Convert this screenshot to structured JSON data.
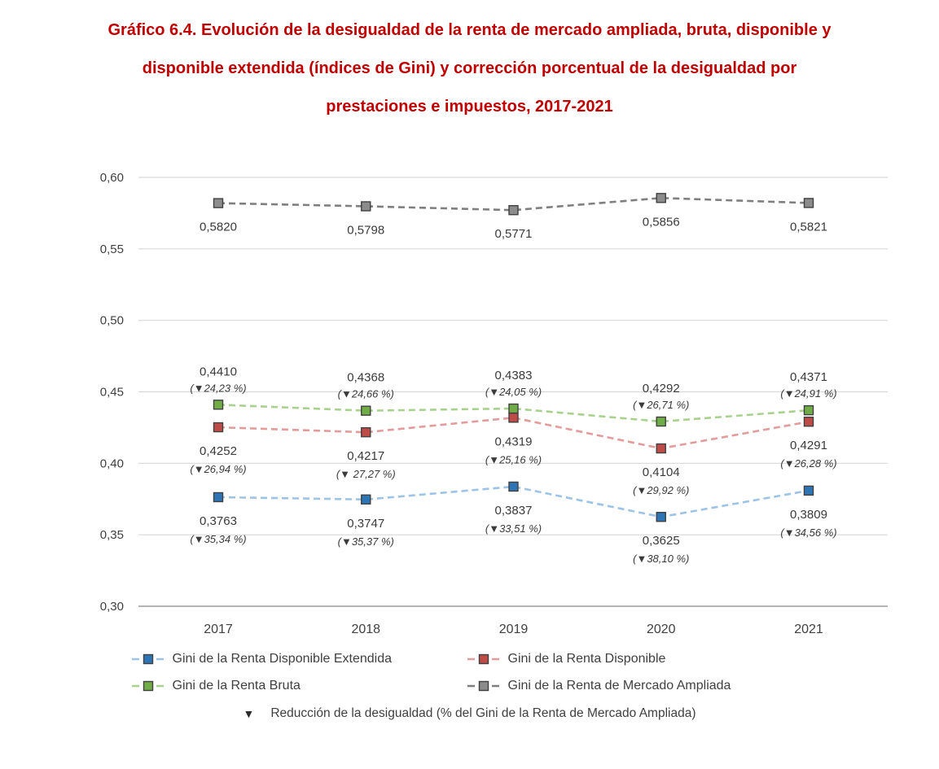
{
  "title": {
    "line1": "Gráfico 6.4. Evolución de la desigualdad de la renta de mercado ampliada, bruta, disponible y",
    "line2": "disponible extendida (índices de Gini) y corrección porcentual de la desigualdad por",
    "line3": "prestaciones e impuestos, 2017-2021",
    "color": "#C00000"
  },
  "chart_data": {
    "type": "line",
    "categories": [
      "2017",
      "2018",
      "2019",
      "2020",
      "2021"
    ],
    "ylim": [
      0.3,
      0.6
    ],
    "grid": true,
    "legend_position": "bottom",
    "yticks": [
      {
        "value": 0.3,
        "label": "0,30"
      },
      {
        "value": 0.35,
        "label": "0,35"
      },
      {
        "value": 0.4,
        "label": "0,40"
      },
      {
        "value": 0.45,
        "label": "0,45"
      },
      {
        "value": 0.5,
        "label": "0,50"
      },
      {
        "value": 0.55,
        "label": "0,55"
      },
      {
        "value": 0.6,
        "label": "0,60"
      }
    ],
    "series": [
      {
        "name": "Gini de la Renta de Mercado Ampliada",
        "values": [
          0.582,
          0.5798,
          0.5771,
          0.5856,
          0.5821
        ],
        "value_labels": [
          "0,5820",
          "0,5798",
          "0,5771",
          "0,5856",
          "0,5821"
        ],
        "reduction_labels": [
          null,
          null,
          null,
          null,
          null
        ],
        "line_color": "#7F7F7F",
        "marker_color": "#8C8C8C",
        "label_side": "below"
      },
      {
        "name": "Gini de la Renta Bruta",
        "values": [
          0.441,
          0.4368,
          0.4383,
          0.4292,
          0.4371
        ],
        "value_labels": [
          "0,4410",
          "0,4368",
          "0,4383",
          "0,4292",
          "0,4371"
        ],
        "reduction_labels": [
          "(▼24,23 %)",
          "(▼24,66 %)",
          "(▼24,05 %)",
          "(▼26,71 %)",
          "(▼24,91 %)"
        ],
        "line_color": "#A9D18E",
        "marker_color": "#70AD47",
        "label_side": "above"
      },
      {
        "name": "Gini de la Renta Disponible",
        "values": [
          0.4252,
          0.4217,
          0.4319,
          0.4104,
          0.4291
        ],
        "value_labels": [
          "0,4252",
          "0,4217",
          "0,4319",
          "0,4104",
          "0,4291"
        ],
        "reduction_labels": [
          "(▼26,94 %)",
          "(▼ 27,27 %)",
          "(▼25,16 %)",
          "(▼29,92 %)",
          "(▼26,28 %)"
        ],
        "line_color": "#E39B9B",
        "marker_color": "#BE4B48",
        "label_side": "below"
      },
      {
        "name": "Gini de la Renta Disponible Extendida",
        "values": [
          0.3763,
          0.3747,
          0.3837,
          0.3625,
          0.3809
        ],
        "value_labels": [
          "0,3763",
          "0,3747",
          "0,3837",
          "0,3625",
          "0,3809"
        ],
        "reduction_labels": [
          "(▼35,34 %)",
          "(▼35,37 %)",
          "(▼33,51 %)",
          "(▼38,10 %)",
          "(▼34,56 %)"
        ],
        "line_color": "#9DC3E6",
        "marker_color": "#2E75B6",
        "label_side": "below"
      }
    ]
  },
  "legend": {
    "items": [
      {
        "label": "Gini de la Renta Disponible Extendida",
        "series": 3
      },
      {
        "label": "Gini de la Renta Disponible",
        "series": 2
      },
      {
        "label": "Gini de la Renta Bruta",
        "series": 1
      },
      {
        "label": "Gini de la Renta de Mercado Ampliada",
        "series": 0
      }
    ],
    "note_icon": "▼",
    "note_text": "Reducción de la desigualdad (% del Gini de la Renta de Mercado Ampliada)"
  }
}
